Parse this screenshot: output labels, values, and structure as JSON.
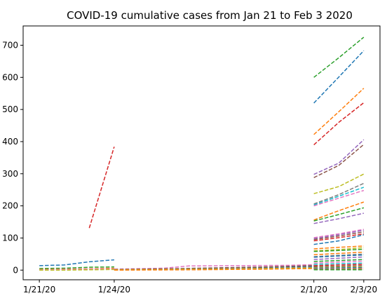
{
  "chart_data": {
    "type": "line",
    "title": "COVID-19 cumulative cases from Jan 21 to Feb 3 2020",
    "xlabel": "",
    "ylabel": "",
    "line_style": "dashed",
    "grid": false,
    "legend": "none",
    "x_range": [
      "1/21/20",
      "2/3/20"
    ],
    "ylim": [
      -30,
      760
    ],
    "x_ticks": [
      "1/21/20",
      "1/24/20",
      "2/1/20",
      "2/3/20"
    ],
    "y_ticks": [
      0,
      100,
      200,
      300,
      400,
      500,
      600,
      700
    ],
    "series": [
      {
        "color": "#d62728",
        "points": [
          [
            "1/23/20",
            131
          ],
          [
            "1/24/20",
            384
          ]
        ]
      },
      {
        "color": "#1f77b4",
        "points": [
          [
            "1/21/20",
            14
          ],
          [
            "1/22/20",
            16
          ],
          [
            "1/23/20",
            26
          ],
          [
            "1/24/20",
            32
          ]
        ]
      },
      {
        "color": "#2ca02c",
        "points": [
          [
            "1/21/20",
            5
          ],
          [
            "1/22/20",
            6
          ],
          [
            "1/23/20",
            9
          ],
          [
            "1/24/20",
            10
          ]
        ]
      },
      {
        "color": "#ff7f0e",
        "points": [
          [
            "1/21/20",
            2
          ],
          [
            "1/22/20",
            3
          ],
          [
            "1/23/20",
            4
          ],
          [
            "1/24/20",
            6
          ]
        ]
      },
      {
        "color": "#e377c2",
        "points": [
          [
            "1/21/20",
            1
          ],
          [
            "1/22/20",
            2
          ],
          [
            "1/23/20",
            3
          ],
          [
            "1/24/20",
            4
          ]
        ]
      },
      {
        "color": "#bcbd22",
        "points": [
          [
            "1/21/20",
            0
          ],
          [
            "1/22/20",
            0
          ],
          [
            "1/23/20",
            1
          ],
          [
            "1/24/20",
            2
          ]
        ]
      },
      {
        "color": "#1f77b4",
        "points": [
          [
            "1/24/20",
            1
          ],
          [
            "1/26/20",
            3
          ],
          [
            "1/28/20",
            5
          ],
          [
            "1/30/20",
            8
          ],
          [
            "2/1/20",
            12
          ]
        ]
      },
      {
        "color": "#e377c2",
        "points": [
          [
            "1/24/20",
            3
          ],
          [
            "1/26/20",
            6
          ],
          [
            "1/27/20",
            13
          ],
          [
            "1/29/20",
            14
          ],
          [
            "1/31/20",
            15
          ],
          [
            "2/1/20",
            17
          ]
        ]
      },
      {
        "color": "#8c564b",
        "points": [
          [
            "1/24/20",
            2
          ],
          [
            "1/26/20",
            4
          ],
          [
            "1/28/20",
            7
          ],
          [
            "1/30/20",
            10
          ],
          [
            "2/1/20",
            14
          ]
        ]
      },
      {
        "color": "#7f7f7f",
        "points": [
          [
            "1/24/20",
            0
          ],
          [
            "1/26/20",
            2
          ],
          [
            "1/28/20",
            4
          ],
          [
            "1/30/20",
            6
          ],
          [
            "2/1/20",
            9
          ]
        ]
      },
      {
        "color": "#bcbd22",
        "points": [
          [
            "1/24/20",
            1
          ],
          [
            "1/26/20",
            2
          ],
          [
            "1/28/20",
            3
          ],
          [
            "1/30/20",
            5
          ],
          [
            "2/1/20",
            7
          ]
        ]
      },
      {
        "color": "#ff7f0e",
        "points": [
          [
            "1/24/20",
            0
          ],
          [
            "1/27/20",
            1
          ],
          [
            "1/30/20",
            3
          ],
          [
            "2/1/20",
            5
          ]
        ]
      },
      {
        "color": "#2ca02c",
        "points": [
          [
            "2/1/20",
            600
          ],
          [
            "2/2/20",
            661
          ],
          [
            "2/3/20",
            725
          ]
        ]
      },
      {
        "color": "#1f77b4",
        "points": [
          [
            "2/1/20",
            520
          ],
          [
            "2/2/20",
            601
          ],
          [
            "2/3/20",
            683
          ]
        ]
      },
      {
        "color": "#ff7f0e",
        "points": [
          [
            "2/1/20",
            422
          ],
          [
            "2/2/20",
            493
          ],
          [
            "2/3/20",
            566
          ]
        ]
      },
      {
        "color": "#d62728",
        "points": [
          [
            "2/1/20",
            390
          ],
          [
            "2/2/20",
            460
          ],
          [
            "2/3/20",
            521
          ]
        ]
      },
      {
        "color": "#9467bd",
        "points": [
          [
            "2/1/20",
            298
          ],
          [
            "2/2/20",
            333
          ],
          [
            "2/3/20",
            406
          ]
        ]
      },
      {
        "color": "#8c564b",
        "points": [
          [
            "2/1/20",
            288
          ],
          [
            "2/2/20",
            326
          ],
          [
            "2/3/20",
            391
          ]
        ]
      },
      {
        "color": "#bcbd22",
        "points": [
          [
            "2/1/20",
            238
          ],
          [
            "2/2/20",
            260
          ],
          [
            "2/3/20",
            299
          ]
        ]
      },
      {
        "color": "#7f7f7f",
        "points": [
          [
            "2/1/20",
            206
          ],
          [
            "2/2/20",
            235
          ],
          [
            "2/3/20",
            270
          ]
        ]
      },
      {
        "color": "#17becf",
        "points": [
          [
            "2/1/20",
            203
          ],
          [
            "2/2/20",
            230
          ],
          [
            "2/3/20",
            258
          ]
        ]
      },
      {
        "color": "#e377c2",
        "points": [
          [
            "2/1/20",
            200
          ],
          [
            "2/2/20",
            224
          ],
          [
            "2/3/20",
            248
          ]
        ]
      },
      {
        "color": "#ff7f0e",
        "points": [
          [
            "2/1/20",
            156
          ],
          [
            "2/2/20",
            185
          ],
          [
            "2/3/20",
            212
          ]
        ]
      },
      {
        "color": "#2ca02c",
        "points": [
          [
            "2/1/20",
            153
          ],
          [
            "2/2/20",
            173
          ],
          [
            "2/3/20",
            194
          ]
        ]
      },
      {
        "color": "#9467bd",
        "points": [
          [
            "2/1/20",
            145
          ],
          [
            "2/2/20",
            160
          ],
          [
            "2/3/20",
            177
          ]
        ]
      },
      {
        "color": "#e377c2",
        "points": [
          [
            "2/1/20",
            101
          ],
          [
            "2/2/20",
            113
          ],
          [
            "2/3/20",
            127
          ]
        ]
      },
      {
        "color": "#9467bd",
        "points": [
          [
            "2/1/20",
            98
          ],
          [
            "2/2/20",
            110
          ],
          [
            "2/3/20",
            124
          ]
        ]
      },
      {
        "color": "#8c564b",
        "points": [
          [
            "2/1/20",
            95
          ],
          [
            "2/2/20",
            106
          ],
          [
            "2/3/20",
            119
          ]
        ]
      },
      {
        "color": "#d62728",
        "points": [
          [
            "2/1/20",
            91
          ],
          [
            "2/2/20",
            101
          ],
          [
            "2/3/20",
            113
          ]
        ]
      },
      {
        "color": "#1f77b4",
        "points": [
          [
            "2/1/20",
            80
          ],
          [
            "2/2/20",
            91
          ],
          [
            "2/3/20",
            110
          ]
        ]
      },
      {
        "color": "#ff7f0e",
        "points": [
          [
            "2/1/20",
            66
          ],
          [
            "2/2/20",
            71
          ],
          [
            "2/3/20",
            75
          ]
        ]
      },
      {
        "color": "#bcbd22",
        "points": [
          [
            "2/1/20",
            60
          ],
          [
            "2/2/20",
            64
          ],
          [
            "2/3/20",
            70
          ]
        ]
      },
      {
        "color": "#2ca02c",
        "points": [
          [
            "2/1/20",
            58
          ],
          [
            "2/2/20",
            61
          ],
          [
            "2/3/20",
            65
          ]
        ]
      },
      {
        "color": "#ff7f0e",
        "points": [
          [
            "2/1/20",
            48
          ],
          [
            "2/2/20",
            52
          ],
          [
            "2/3/20",
            56
          ]
        ]
      },
      {
        "color": "#7f7f7f",
        "points": [
          [
            "2/1/20",
            42
          ],
          [
            "2/2/20",
            46
          ],
          [
            "2/3/20",
            50
          ]
        ]
      },
      {
        "color": "#1f77b4",
        "points": [
          [
            "2/1/20",
            40
          ],
          [
            "2/2/20",
            44
          ],
          [
            "2/3/20",
            47
          ]
        ]
      },
      {
        "color": "#9467bd",
        "points": [
          [
            "2/1/20",
            33
          ],
          [
            "2/2/20",
            37
          ],
          [
            "2/3/20",
            41
          ]
        ]
      },
      {
        "color": "#2ca02c",
        "points": [
          [
            "2/1/20",
            27
          ],
          [
            "2/2/20",
            30
          ],
          [
            "2/3/20",
            33
          ]
        ]
      },
      {
        "color": "#e377c2",
        "points": [
          [
            "2/1/20",
            22
          ],
          [
            "2/2/20",
            25
          ],
          [
            "2/3/20",
            28
          ]
        ]
      },
      {
        "color": "#17becf",
        "points": [
          [
            "2/1/20",
            18
          ],
          [
            "2/2/20",
            20
          ],
          [
            "2/3/20",
            22
          ]
        ]
      },
      {
        "color": "#d62728",
        "points": [
          [
            "2/1/20",
            14
          ],
          [
            "2/2/20",
            16
          ],
          [
            "2/3/20",
            18
          ]
        ]
      },
      {
        "color": "#8c564b",
        "points": [
          [
            "2/1/20",
            11
          ],
          [
            "2/2/20",
            12
          ],
          [
            "2/3/20",
            14
          ]
        ]
      },
      {
        "color": "#bcbd22",
        "points": [
          [
            "2/1/20",
            8
          ],
          [
            "2/2/20",
            9
          ],
          [
            "2/3/20",
            10
          ]
        ]
      },
      {
        "color": "#1f77b4",
        "points": [
          [
            "2/1/20",
            6
          ],
          [
            "2/2/20",
            7
          ],
          [
            "2/3/20",
            8
          ]
        ]
      },
      {
        "color": "#7f7f7f",
        "points": [
          [
            "2/1/20",
            4
          ],
          [
            "2/2/20",
            5
          ],
          [
            "2/3/20",
            6
          ]
        ]
      },
      {
        "color": "#ff7f0e",
        "points": [
          [
            "2/1/20",
            3
          ],
          [
            "2/2/20",
            3
          ],
          [
            "2/3/20",
            4
          ]
        ]
      },
      {
        "color": "#9467bd",
        "points": [
          [
            "2/1/20",
            2
          ],
          [
            "2/2/20",
            2
          ],
          [
            "2/3/20",
            2
          ]
        ]
      },
      {
        "color": "#2ca02c",
        "points": [
          [
            "2/1/20",
            1
          ],
          [
            "2/2/20",
            1
          ],
          [
            "2/3/20",
            1
          ]
        ]
      }
    ]
  }
}
